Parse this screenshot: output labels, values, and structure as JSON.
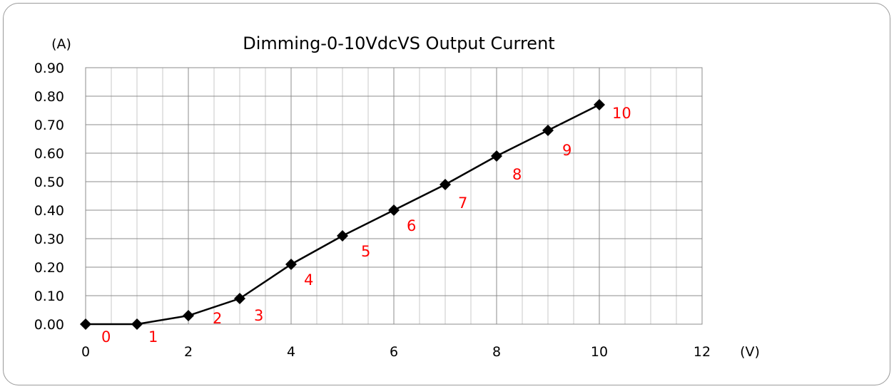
{
  "chart_data": {
    "type": "line",
    "title": "Dimming-0-10VdcVS Output Current",
    "y_unit": "(A)",
    "x_unit": "(V)",
    "xlim": [
      0,
      12
    ],
    "ylim": [
      0,
      0.9
    ],
    "x_ticks": [
      "0",
      "2",
      "4",
      "6",
      "8",
      "10",
      "12"
    ],
    "y_ticks": [
      "0.00",
      "0.10",
      "0.20",
      "0.30",
      "0.40",
      "0.50",
      "0.60",
      "0.70",
      "0.80",
      "0.90"
    ],
    "grid": true,
    "marker": "diamond",
    "line_color": "#000000",
    "label_color": "#ff0000",
    "series": [
      {
        "x": [
          0,
          1,
          2,
          3,
          4,
          5,
          6,
          7,
          8,
          9,
          10
        ],
        "values": [
          0.0,
          0.0,
          0.03,
          0.09,
          0.21,
          0.31,
          0.4,
          0.49,
          0.59,
          0.68,
          0.77
        ],
        "point_labels": [
          "0",
          "1",
          "2",
          "3",
          "4",
          "5",
          "6",
          "7",
          "8",
          "9",
          "10"
        ]
      }
    ]
  }
}
